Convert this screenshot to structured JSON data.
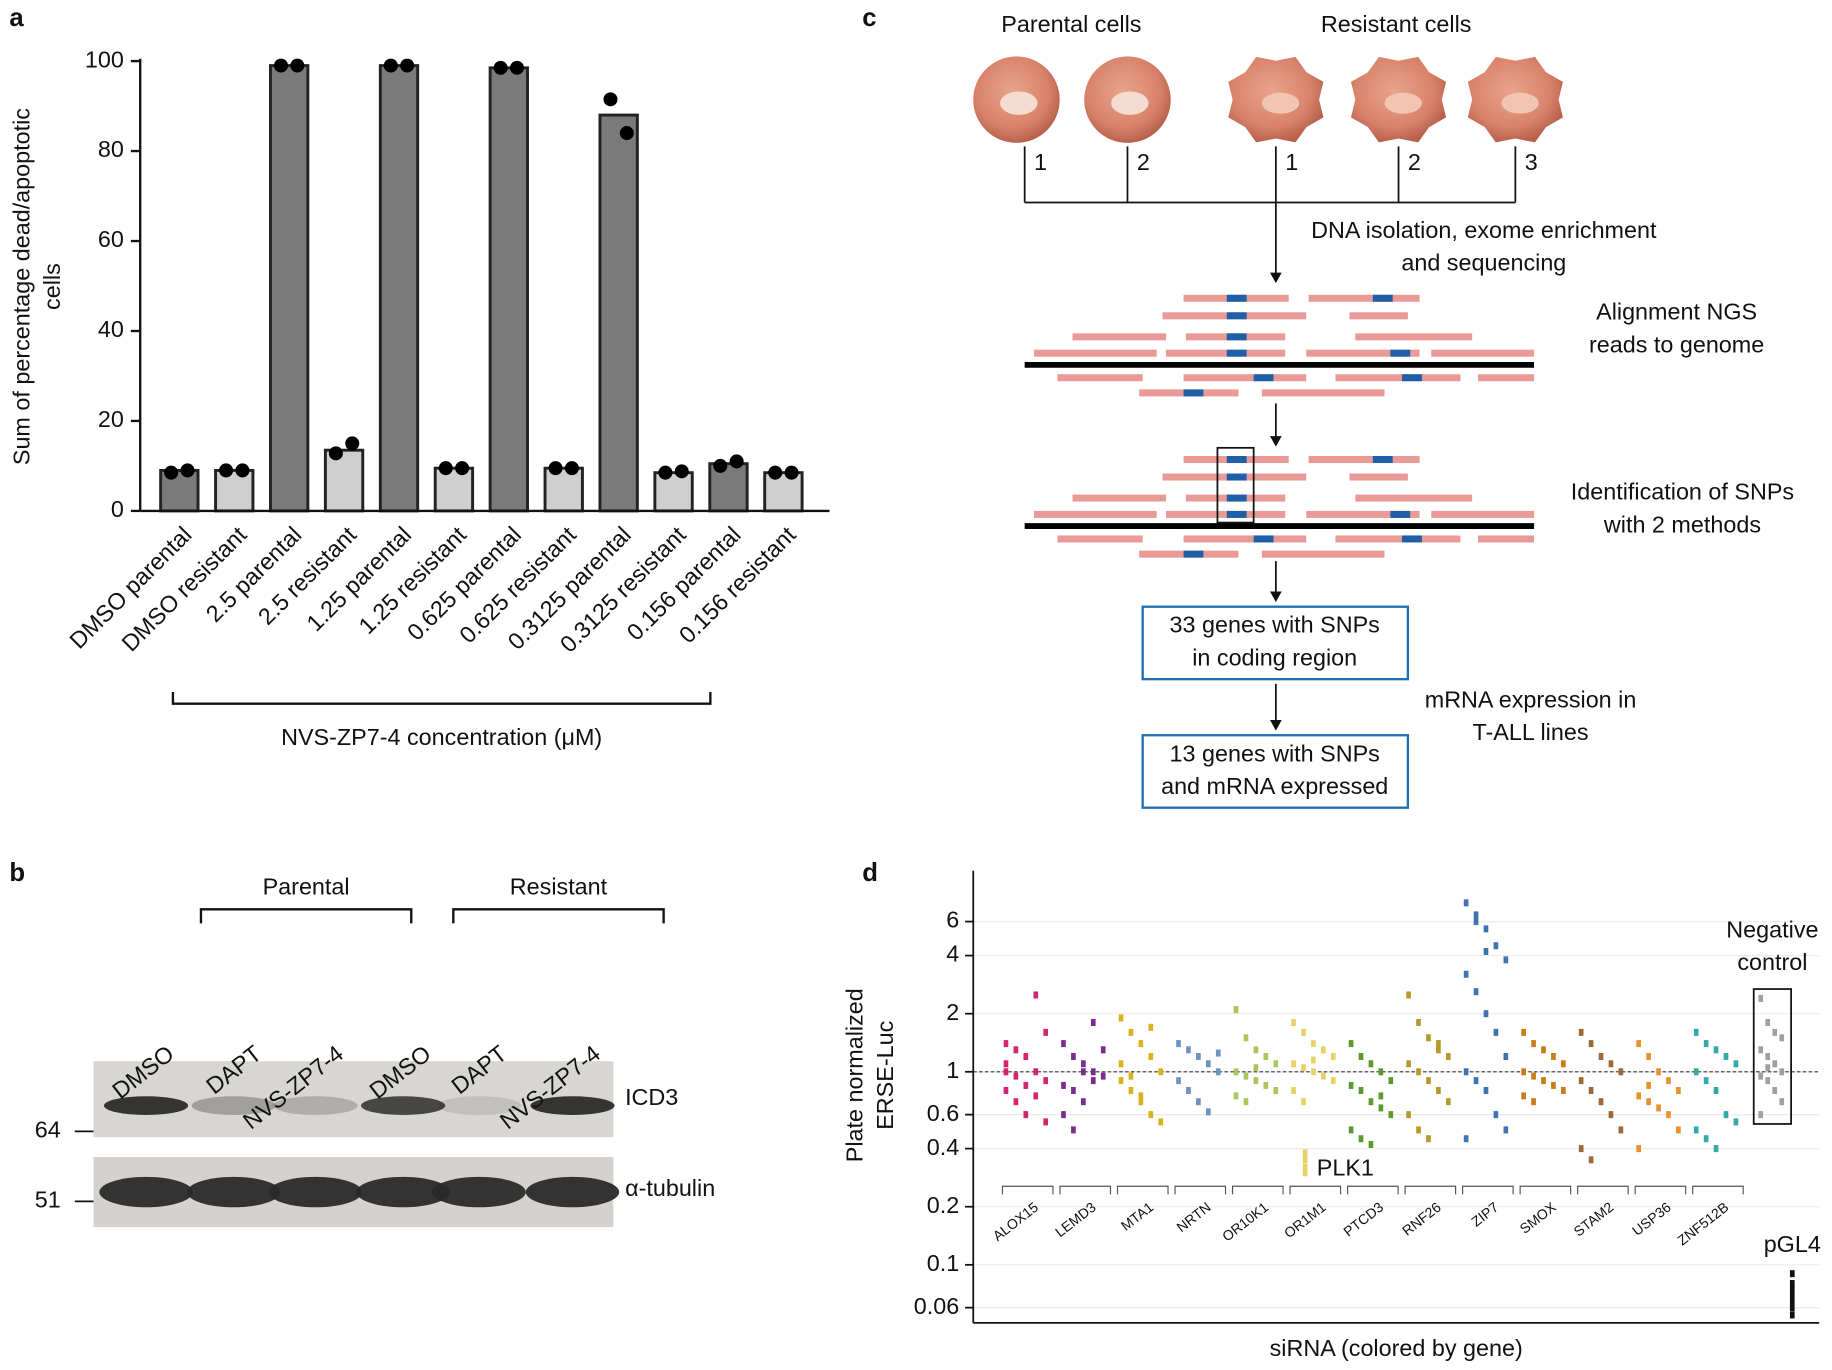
{
  "chart_data": [
    {
      "type": "bar",
      "panel": "a",
      "ylabel": [
        "Sum of percentage dead/apoptotic",
        "cells"
      ],
      "xlabel": "NVS-ZP7-4 concentration (μM)",
      "categories": [
        "DMSO parental",
        "DMSO resistant",
        "2.5 parental",
        "2.5 resistant",
        "1.25 parental",
        "1.25 resistant",
        "0.625 parental",
        "0.625 resistant",
        "0.3125 parental",
        "0.3125 resistant",
        "0.156 parental",
        "0.156 resistant"
      ],
      "values": [
        9,
        9,
        99,
        13.5,
        99,
        9.5,
        98.5,
        9.5,
        88,
        8.5,
        10.5,
        8.5
      ],
      "points": [
        [
          8.5,
          9
        ],
        [
          9,
          9
        ],
        [
          99,
          99
        ],
        [
          12.8,
          15
        ],
        [
          99,
          99
        ],
        [
          9.5,
          9.5
        ],
        [
          98.5,
          98.5
        ],
        [
          9.5,
          9.5
        ],
        [
          91.5,
          84
        ],
        [
          8.5,
          8.8
        ],
        [
          10,
          11
        ],
        [
          8.5,
          8.5
        ]
      ],
      "bar_colors": [
        "#7a7a7a",
        "#cfcfcf",
        "#7a7a7a",
        "#cfcfcf",
        "#7a7a7a",
        "#cfcfcf",
        "#7a7a7a",
        "#cfcfcf",
        "#7a7a7a",
        "#cfcfcf",
        "#7a7a7a",
        "#cfcfcf"
      ],
      "ylim": [
        0,
        100
      ],
      "yticks": [
        0,
        20,
        40,
        60,
        80,
        100
      ]
    },
    {
      "type": "strip",
      "panel": "d",
      "log_y": true,
      "grid": true,
      "ylabel": [
        "Plate normalized",
        "ERSE-Luc"
      ],
      "xlabel": "siRNA (colored by gene)",
      "ylim": [
        0.05,
        11
      ],
      "yticks": [
        0.06,
        0.1,
        0.2,
        0.4,
        0.6,
        1,
        2,
        4,
        6
      ],
      "reference_line": 1,
      "series": [
        {
          "name": "ALOX15",
          "color": "#d6256f",
          "values": [
            1.4,
            1.3,
            1.2,
            1.0,
            0.9,
            0.8,
            0.7,
            0.6,
            2.5,
            1.6,
            1.1,
            0.95,
            0.85,
            0.75,
            0.55,
            1.0
          ]
        },
        {
          "name": "LEMD3",
          "color": "#7b2d8e",
          "values": [
            1.4,
            1.2,
            1.1,
            1.0,
            0.95,
            0.85,
            0.8,
            0.7,
            1.8,
            1.3,
            0.6,
            0.5,
            1.0,
            0.9
          ]
        },
        {
          "name": "MTA1",
          "color": "#d8b31c",
          "values": [
            1.9,
            1.6,
            1.4,
            1.2,
            1.0,
            0.9,
            0.8,
            0.7,
            0.6,
            0.55,
            1.1,
            0.95,
            0.75,
            1.7
          ]
        },
        {
          "name": "NRTN",
          "color": "#6f93bd",
          "values": [
            1.4,
            1.3,
            1.2,
            1.1,
            1.0,
            0.9,
            0.8,
            0.7,
            0.62,
            1.25
          ]
        },
        {
          "name": "OR10K1",
          "color": "#a9c75b",
          "values": [
            2.1,
            1.5,
            1.3,
            1.2,
            1.1,
            1.0,
            0.95,
            0.9,
            0.85,
            0.8,
            0.75,
            0.7,
            1.05
          ]
        },
        {
          "name": "OR1M1",
          "color": "#e8d266",
          "values": [
            1.8,
            1.6,
            1.4,
            1.3,
            1.2,
            1.1,
            1.05,
            1.0,
            0.95,
            0.9,
            0.8,
            0.7,
            1.15
          ]
        },
        {
          "name": "PTCD3",
          "color": "#5c9a2e",
          "values": [
            1.4,
            1.2,
            1.1,
            1.0,
            0.9,
            0.85,
            0.8,
            0.7,
            0.65,
            0.6,
            0.5,
            0.45,
            0.42,
            0.75
          ]
        },
        {
          "name": "RNF26",
          "color": "#b59a2b",
          "values": [
            2.5,
            1.8,
            1.5,
            1.3,
            1.2,
            1.1,
            1.0,
            0.9,
            0.8,
            0.7,
            0.6,
            0.5,
            0.45,
            1.4
          ]
        },
        {
          "name": "ZIP7",
          "color": "#3f74b0",
          "values": [
            7.5,
            6.5,
            5.5,
            4.5,
            3.8,
            3.2,
            2.6,
            2.0,
            1.6,
            1.2,
            1.0,
            0.9,
            0.8,
            0.6,
            0.5,
            0.45,
            6.0,
            4.2
          ]
        },
        {
          "name": "SMOX",
          "color": "#c77d18",
          "values": [
            1.6,
            1.4,
            1.3,
            1.2,
            1.1,
            1.0,
            0.95,
            0.9,
            0.85,
            0.8,
            0.75,
            0.7
          ]
        },
        {
          "name": "STAM2",
          "color": "#9c6a3a",
          "values": [
            1.6,
            1.4,
            1.2,
            1.1,
            1.0,
            0.9,
            0.8,
            0.7,
            0.6,
            0.5,
            0.4,
            0.35
          ]
        },
        {
          "name": "USP36",
          "color": "#e8922d",
          "values": [
            1.4,
            1.2,
            1.0,
            0.9,
            0.8,
            0.75,
            0.7,
            0.65,
            0.6,
            0.5,
            0.4,
            0.85
          ]
        },
        {
          "name": "ZNF512B",
          "color": "#33aaa8",
          "values": [
            1.6,
            1.4,
            1.3,
            1.2,
            1.1,
            1.0,
            0.9,
            0.8,
            0.6,
            0.55,
            0.5,
            0.45,
            0.4
          ]
        }
      ],
      "controls": [
        {
          "name": "PLK1",
          "color": "#e8d266",
          "values": [
            0.38,
            0.35,
            0.32,
            0.3
          ]
        },
        {
          "name": "Negative control",
          "color": "#a0a0a0",
          "values": [
            2.4,
            1.8,
            1.6,
            1.5,
            1.3,
            1.2,
            1.1,
            1.0,
            0.95,
            0.9,
            0.8,
            0.7,
            0.6,
            1.05
          ]
        },
        {
          "name": "pGL4",
          "color": "#111111",
          "values": [
            0.09,
            0.08,
            0.075,
            0.07,
            0.065,
            0.06,
            0.055
          ]
        }
      ]
    }
  ],
  "blot": {
    "panel": "b",
    "groups": [
      "Parental",
      "Resistant"
    ],
    "lanes": [
      "DMSO",
      "DAPT",
      "NVS-ZP7-4",
      "DMSO",
      "DAPT",
      "NVS-ZP7-4"
    ],
    "proteins": [
      "ICD3",
      "α-tubulin"
    ],
    "markers": [
      "64",
      "51"
    ]
  },
  "workflow": {
    "panel": "c",
    "groups": [
      "Parental cells",
      "Resistant cells"
    ],
    "samples": [
      "1",
      "2",
      "1",
      "2",
      "3"
    ],
    "steps": [
      [
        "DNA isolation, exome enrichment",
        "and sequencing"
      ],
      [
        "Alignment NGS",
        "reads to genome"
      ],
      [
        "Identification of SNPs",
        "with 2 methods"
      ],
      [
        "33 genes with SNPs",
        "in coding region"
      ],
      [
        "mRNA expression in",
        "T-ALL lines"
      ],
      [
        "13 genes with SNPs",
        "and mRNA expressed"
      ]
    ]
  }
}
